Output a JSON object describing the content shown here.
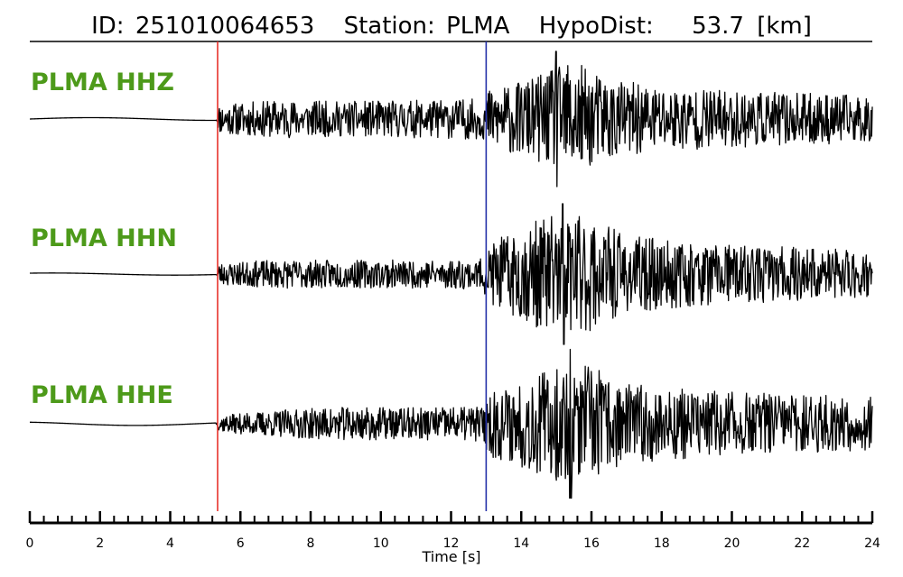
{
  "title": {
    "id_label": "ID:",
    "id_value": "251010064653",
    "station_label": "Station:",
    "station_value": "PLMA",
    "dist_label": "HypoDist:",
    "dist_value": "53.7",
    "dist_unit": "[km]"
  },
  "colors": {
    "label": "#4d9a1a",
    "p_pick": "#e8322d",
    "s_pick": "#2430a8",
    "trace": "#000000"
  },
  "chart_data": {
    "type": "line",
    "xlabel": "Time [s]",
    "xlim": [
      0,
      24
    ],
    "major_ticks": [
      0,
      2,
      4,
      6,
      8,
      10,
      12,
      14,
      16,
      18,
      20,
      22,
      24
    ],
    "minor_tick_step": 0.4,
    "picks": [
      {
        "name": "P",
        "time": 5.35,
        "color": "#e8322d"
      },
      {
        "name": "S",
        "time": 13.0,
        "color": "#2430a8"
      }
    ],
    "series": [
      {
        "name": "PLMA HHZ",
        "seed": 11,
        "base_amp": 0.04,
        "envelope": [
          [
            0,
            0.0
          ],
          [
            5.3,
            0.0
          ],
          [
            5.4,
            0.22
          ],
          [
            7,
            0.28
          ],
          [
            9,
            0.26
          ],
          [
            11,
            0.28
          ],
          [
            12.9,
            0.3
          ],
          [
            13.1,
            0.45
          ],
          [
            14,
            0.55
          ],
          [
            15,
            0.75
          ],
          [
            15.4,
            0.9
          ],
          [
            16,
            0.7
          ],
          [
            17,
            0.55
          ],
          [
            19,
            0.45
          ],
          [
            21,
            0.4
          ],
          [
            24,
            0.35
          ]
        ],
        "spike": {
          "time": 15.0,
          "peak": 1.0
        }
      },
      {
        "name": "PLMA HHN",
        "seed": 23,
        "base_amp": 0.03,
        "envelope": [
          [
            0,
            0.0
          ],
          [
            5.3,
            0.0
          ],
          [
            5.4,
            0.16
          ],
          [
            7,
            0.2
          ],
          [
            9,
            0.2
          ],
          [
            11,
            0.2
          ],
          [
            12.9,
            0.22
          ],
          [
            13.1,
            0.45
          ],
          [
            14,
            0.65
          ],
          [
            15,
            0.9
          ],
          [
            16,
            0.8
          ],
          [
            17,
            0.55
          ],
          [
            19,
            0.45
          ],
          [
            21,
            0.4
          ],
          [
            24,
            0.35
          ]
        ],
        "spike": {
          "time": 15.2,
          "peak": 1.0
        }
      },
      {
        "name": "PLMA HHE",
        "seed": 37,
        "base_amp": 0.05,
        "envelope": [
          [
            0,
            0.0
          ],
          [
            5.3,
            0.0
          ],
          [
            5.4,
            0.12
          ],
          [
            7,
            0.2
          ],
          [
            9,
            0.25
          ],
          [
            11,
            0.24
          ],
          [
            12.9,
            0.26
          ],
          [
            13.1,
            0.5
          ],
          [
            14,
            0.65
          ],
          [
            15,
            0.85
          ],
          [
            16,
            0.85
          ],
          [
            17,
            0.6
          ],
          [
            19,
            0.5
          ],
          [
            21,
            0.45
          ],
          [
            24,
            0.4
          ]
        ],
        "spike": {
          "time": 15.4,
          "peak": 1.1
        }
      }
    ]
  }
}
